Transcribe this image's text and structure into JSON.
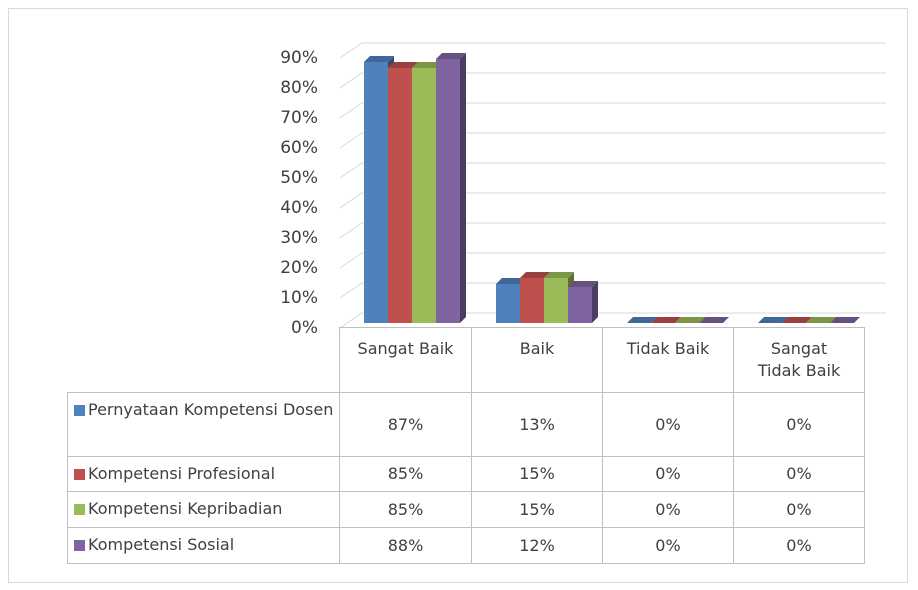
{
  "chart_data": {
    "type": "bar",
    "categories": [
      "Sangat Baik",
      "Baik",
      "Tidak Baik",
      "Sangat Tidak Baik"
    ],
    "series": [
      {
        "name": "Pernyataan Kompetensi Dosen",
        "color": "#4f81bd",
        "values": [
          87,
          13,
          0,
          0
        ],
        "value_labels": [
          "87%",
          "13%",
          "0%",
          "0%"
        ]
      },
      {
        "name": "Kompetensi Profesional",
        "color": "#c0504d",
        "values": [
          85,
          15,
          0,
          0
        ],
        "value_labels": [
          "85%",
          "15%",
          "0%",
          "0%"
        ]
      },
      {
        "name": "Kompetensi Kepribadian",
        "color": "#9bbb59",
        "values": [
          85,
          15,
          0,
          0
        ],
        "value_labels": [
          "85%",
          "15%",
          "0%",
          "0%"
        ]
      },
      {
        "name": "Kompetensi Sosial",
        "color": "#8064a2",
        "values": [
          88,
          12,
          0,
          0
        ],
        "value_labels": [
          "88%",
          "12%",
          "0%",
          "0%"
        ]
      }
    ],
    "ylim": [
      0,
      90
    ],
    "yticks": [
      {
        "value": 0,
        "label": "0%"
      },
      {
        "value": 10,
        "label": "10%"
      },
      {
        "value": 20,
        "label": "20%"
      },
      {
        "value": 30,
        "label": "30%"
      },
      {
        "value": 40,
        "label": "40%"
      },
      {
        "value": 50,
        "label": "50%"
      },
      {
        "value": 60,
        "label": "60%"
      },
      {
        "value": 70,
        "label": "70%"
      },
      {
        "value": 80,
        "label": "80%"
      },
      {
        "value": 90,
        "label": "90%"
      }
    ],
    "grid": true
  }
}
